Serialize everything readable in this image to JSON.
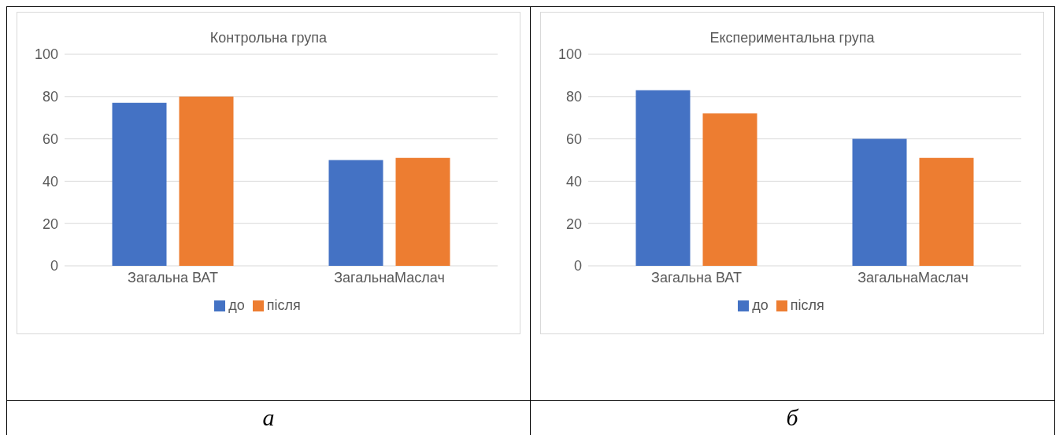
{
  "chart_data": [
    {
      "type": "bar",
      "title": "Контрольна група",
      "categories": [
        "Загальна ВАТ",
        "ЗагальнаМаслач"
      ],
      "series": [
        {
          "name": "до",
          "color": "#4472c4",
          "values": [
            77,
            50
          ]
        },
        {
          "name": "після",
          "color": "#ed7d31",
          "values": [
            80,
            51
          ]
        }
      ],
      "ylim": [
        0,
        100
      ],
      "yticks": [
        0,
        20,
        40,
        60,
        80,
        100
      ],
      "grid": "y",
      "legend": "bottom",
      "annotations": [
        "а"
      ]
    },
    {
      "type": "bar",
      "title": "Експериментальна група",
      "categories": [
        "Загальна ВАТ",
        "ЗагальнаМаслач"
      ],
      "series": [
        {
          "name": "до",
          "color": "#4472c4",
          "values": [
            83,
            60
          ]
        },
        {
          "name": "після",
          "color": "#ed7d31",
          "values": [
            72,
            51
          ]
        }
      ],
      "ylim": [
        0,
        100
      ],
      "yticks": [
        0,
        20,
        40,
        60,
        80,
        100
      ],
      "grid": "y",
      "legend": "bottom",
      "annotations": [
        "б"
      ]
    }
  ]
}
